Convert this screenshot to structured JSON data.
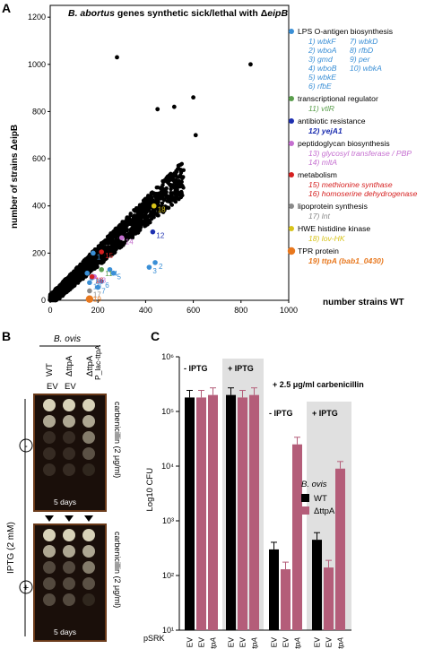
{
  "panels": {
    "A": "A",
    "B": "B",
    "C": "C"
  },
  "panelA": {
    "title_italic": "B. abortus",
    "title_rest": " genes synthetic sick/lethal with Δ",
    "title_gene": "eipB",
    "ylabel": "number of strains ΔeipB",
    "xlabel": "number strains WT",
    "xticks": [
      "0",
      "200",
      "400",
      "600",
      "800",
      "1000"
    ],
    "yticks": [
      "0",
      "200",
      "400",
      "600",
      "800",
      "1000",
      "1200"
    ],
    "legend": [
      {
        "color": "#3a8fd6",
        "header": "LPS O-antigen biosynthesis",
        "lines": [
          [
            "1) wbkF",
            "7) wbkD"
          ],
          [
            "2) wboA",
            "8) rfbD"
          ],
          [
            "3) gmd",
            "9) per"
          ],
          [
            "4) wboB",
            "10) wbkA"
          ],
          [
            "5) wbkE",
            ""
          ],
          [
            "6) rfbE",
            ""
          ]
        ]
      },
      {
        "color": "#5a9e4c",
        "header": "transcriptional regulator",
        "lines": [
          [
            "11) vtlR",
            ""
          ]
        ]
      },
      {
        "color": "#1d2fb0",
        "header": "antibiotic resistance",
        "lines": [
          [
            "12) yejA1",
            ""
          ]
        ]
      },
      {
        "color": "#c56fd0",
        "header": "peptidoglycan biosynthesis",
        "lines": [
          [
            "13) glycosyl transferase / PBP",
            ""
          ],
          [
            "14) mltA",
            ""
          ]
        ]
      },
      {
        "color": "#d62020",
        "header": "metabolism",
        "lines": [
          [
            "15) methionine synthase",
            ""
          ],
          [
            "16) homoserine dehydrogenase",
            ""
          ]
        ]
      },
      {
        "color": "#8a8a8a",
        "header": "lipoprotein synthesis",
        "lines": [
          [
            "17) lnt",
            ""
          ]
        ]
      },
      {
        "color": "#d8c41a",
        "header": "HWE histidine kinase",
        "lines": [
          [
            "18) lov-HK",
            ""
          ]
        ]
      },
      {
        "color": "#e8781e",
        "header": "TPR protein",
        "lines": [
          [
            "19) ttpA (bab1_0430)",
            ""
          ]
        ]
      }
    ]
  },
  "chart_data": {
    "type": "scatter",
    "title": "B. abortus genes synthetic sick/lethal with ΔeipB",
    "xlabel": "number strains WT",
    "ylabel": "number of strains ΔeipB",
    "xlim": [
      0,
      1000
    ],
    "ylim": [
      0,
      1250
    ],
    "highlighted": [
      {
        "label": "1",
        "x": 180,
        "y": 200,
        "color": "#3a8fd6"
      },
      {
        "label": "2",
        "x": 440,
        "y": 160,
        "color": "#3a8fd6"
      },
      {
        "label": "3",
        "x": 415,
        "y": 140,
        "color": "#3a8fd6"
      },
      {
        "label": "4",
        "x": 250,
        "y": 130,
        "color": "#3a8fd6"
      },
      {
        "label": "5",
        "x": 265,
        "y": 115,
        "color": "#3a8fd6"
      },
      {
        "label": "6",
        "x": 215,
        "y": 80,
        "color": "#3a8fd6"
      },
      {
        "label": "7",
        "x": 200,
        "y": 55,
        "color": "#3a8fd6"
      },
      {
        "label": "8",
        "x": 175,
        "y": 95,
        "color": "#3a8fd6"
      },
      {
        "label": "9",
        "x": 155,
        "y": 115,
        "color": "#3a8fd6"
      },
      {
        "label": "10",
        "x": 165,
        "y": 75,
        "color": "#3a8fd6"
      },
      {
        "label": "11",
        "x": 215,
        "y": 130,
        "color": "#5a9e4c"
      },
      {
        "label": "12",
        "x": 430,
        "y": 290,
        "color": "#1d2fb0"
      },
      {
        "label": "13",
        "x": 185,
        "y": 100,
        "color": "#c56fd0"
      },
      {
        "label": "14",
        "x": 300,
        "y": 265,
        "color": "#c56fd0"
      },
      {
        "label": "15",
        "x": 215,
        "y": 205,
        "color": "#d62020"
      },
      {
        "label": "16",
        "x": 175,
        "y": 100,
        "color": "#d62020"
      },
      {
        "label": "17",
        "x": 165,
        "y": 40,
        "color": "#8a8a8a"
      },
      {
        "label": "18",
        "x": 435,
        "y": 400,
        "color": "#d8c41a"
      },
      {
        "label": "19",
        "x": 165,
        "y": 5,
        "color": "#e8781e"
      }
    ],
    "outliers": [
      [
        280,
        1030
      ],
      [
        520,
        820
      ],
      [
        840,
        1000
      ],
      [
        450,
        810
      ],
      [
        600,
        860
      ],
      [
        610,
        700
      ]
    ]
  },
  "panelB": {
    "species": "B. ovis",
    "col_labels": [
      "WT",
      "ΔttpA",
      "ΔttpA",
      "P_lac-ttpA"
    ],
    "ev_labels": [
      "EV",
      "EV"
    ],
    "carb_label": "carbenicillin (2 μg/ml)",
    "days_label": "5 days",
    "iptg_label": "IPTG (2 mM)",
    "minus": "-",
    "plus": "+"
  },
  "panelC": {
    "ylabel": "Log10 CFU",
    "yticks": [
      "10¹",
      "10²",
      "10³",
      "10⁴",
      "10⁵",
      "10⁶"
    ],
    "groups": [
      "- IPTG",
      "+ IPTG"
    ],
    "carb_group": "+ 2.5 μg/ml carbenicillin",
    "sub_groups": [
      "- IPTG",
      "+ IPTG"
    ],
    "legend_title": "B. ovis",
    "legend_items": [
      {
        "name": "WT",
        "color": "#000000"
      },
      {
        "name": "ΔttpA",
        "color": "#b45d79"
      }
    ],
    "psrk": "pSRK",
    "xlabels": [
      "EV",
      "EV",
      "ttpA",
      "EV",
      "EV",
      "ttpA",
      "EV",
      "EV",
      "ttpA",
      "EV",
      "EV",
      "ttpA"
    ]
  },
  "chart_data_C": {
    "type": "bar",
    "ylim": [
      10,
      1000000
    ],
    "log": true,
    "values": [
      180000,
      180000,
      200000,
      200000,
      180000,
      200000,
      300,
      130,
      25000,
      450,
      140,
      9000
    ],
    "colors": [
      "black",
      "pink",
      "pink",
      "black",
      "pink",
      "pink",
      "black",
      "pink",
      "pink",
      "black",
      "pink",
      "pink"
    ]
  }
}
